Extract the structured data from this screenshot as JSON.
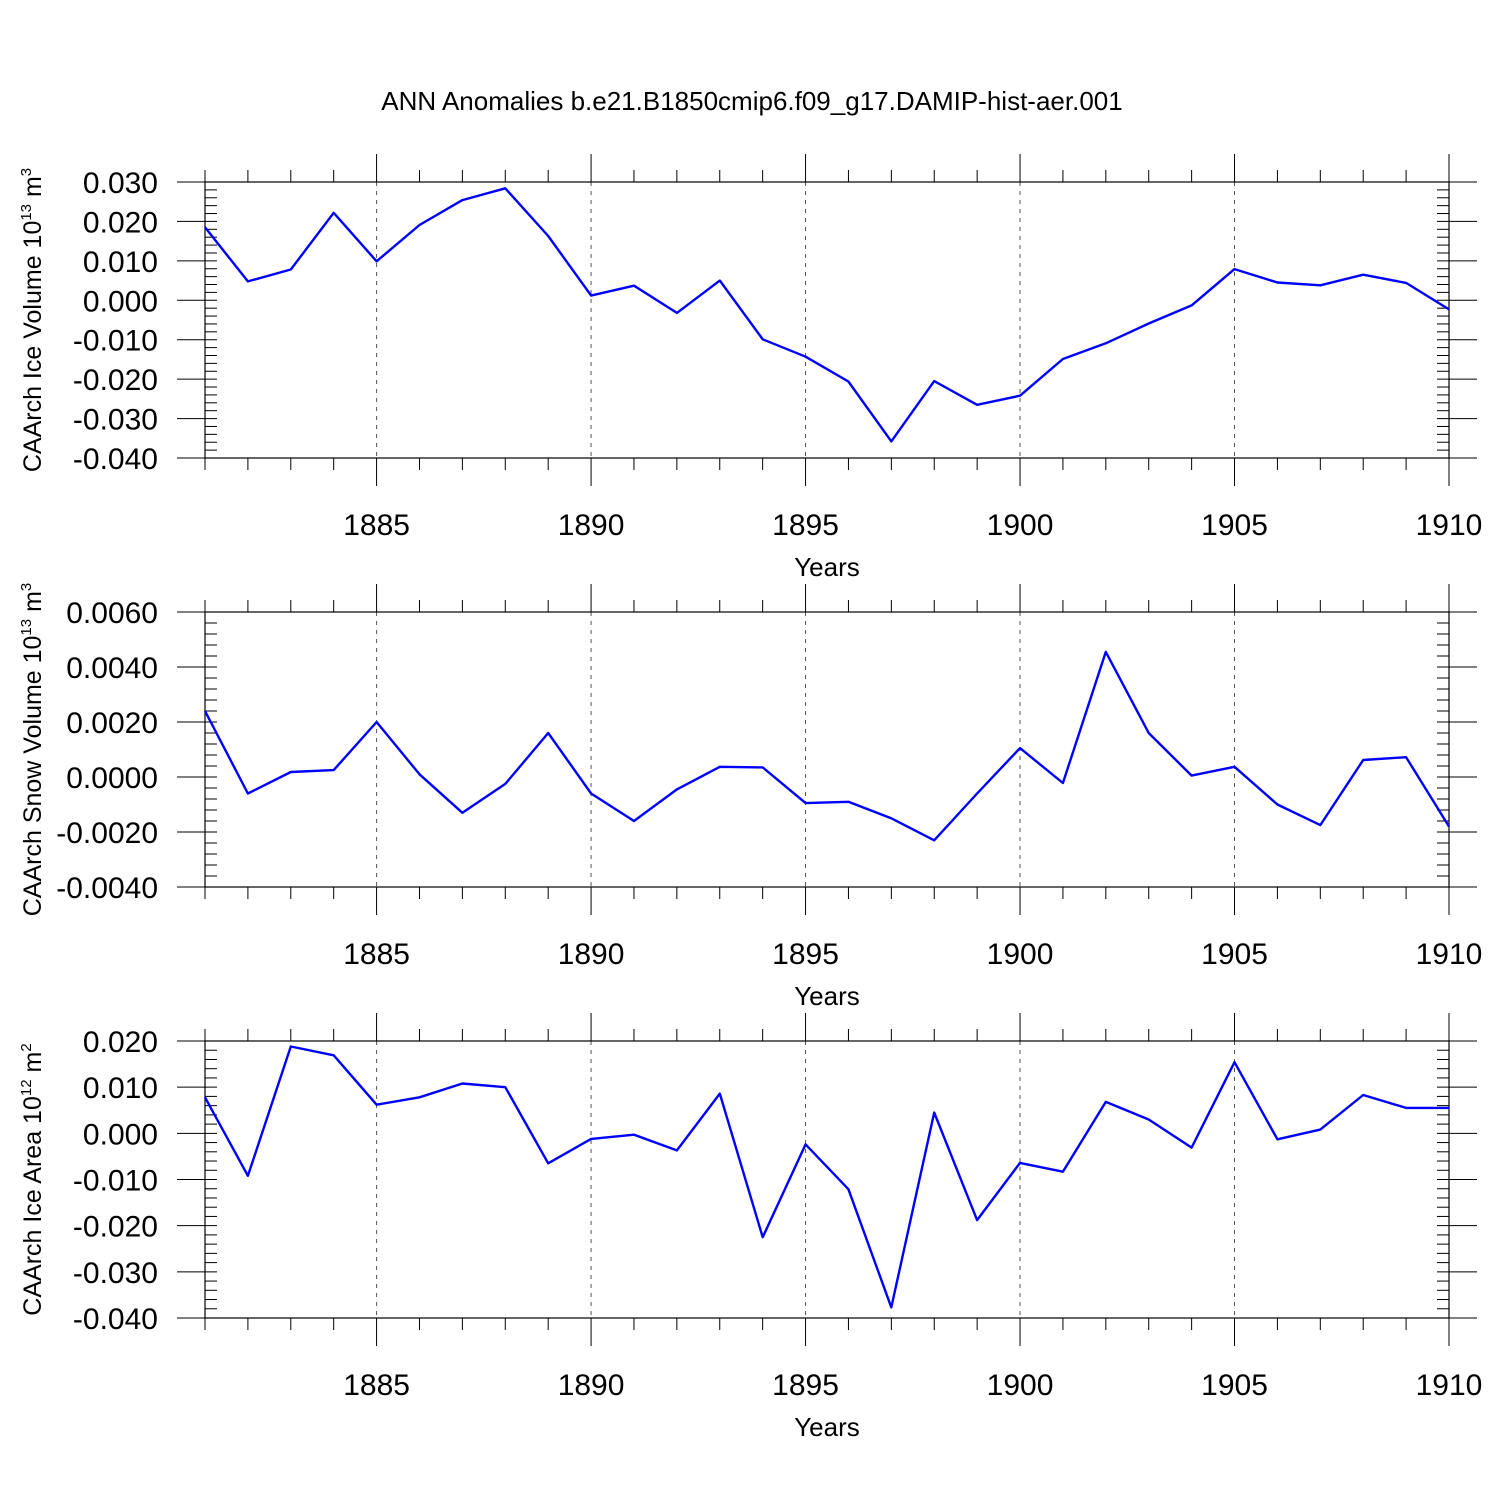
{
  "title": "ANN Anomalies b.e21.B1850cmip6.f09_g17.DAMIP-hist-aer.001",
  "colors": {
    "line": "#0000ff",
    "axis": "#000000",
    "grid": "#555555"
  },
  "chart_data": [
    {
      "type": "line",
      "ylabel": {
        "text": "CAArch Ice Volume 10",
        "sup": "13",
        "unit": " m",
        "unit_sup": "3"
      },
      "xlabel": "Years",
      "xlim": [
        1881,
        1910
      ],
      "ylim": [
        -0.04,
        0.03
      ],
      "yticks": [
        0.03,
        0.02,
        0.01,
        0.0,
        -0.01,
        -0.02,
        -0.03,
        -0.04
      ],
      "ytick_labels": [
        "0.030",
        "0.020",
        "0.010",
        "0.000",
        "-0.010",
        "-0.020",
        "-0.030",
        "-0.040"
      ],
      "xticks": [
        1885,
        1890,
        1895,
        1900,
        1905,
        1910
      ],
      "xtick_labels": [
        "1885",
        "1890",
        "1895",
        "1900",
        "1905",
        "1910"
      ],
      "grid": "vertical dashed at major x ticks",
      "x": [
        1881,
        1882,
        1883,
        1884,
        1885,
        1886,
        1887,
        1888,
        1889,
        1890,
        1891,
        1892,
        1893,
        1894,
        1895,
        1896,
        1897,
        1898,
        1899,
        1900,
        1901,
        1902,
        1903,
        1904,
        1905,
        1906,
        1907,
        1908,
        1909,
        1910
      ],
      "values": [
        0.0185,
        0.0048,
        0.0078,
        0.0222,
        0.0099,
        0.0191,
        0.0254,
        0.0284,
        0.0163,
        0.0012,
        0.0037,
        -0.0032,
        0.005,
        -0.0099,
        -0.0143,
        -0.0206,
        -0.0358,
        -0.0205,
        -0.0265,
        -0.0242,
        -0.0149,
        -0.0109,
        -0.0059,
        -0.0013,
        0.0079,
        0.0045,
        0.0038,
        0.0065,
        0.0044,
        -0.0023
      ]
    },
    {
      "type": "line",
      "ylabel": {
        "text": "CAArch Snow Volume 10",
        "sup": "13",
        "unit": " m",
        "unit_sup": "3"
      },
      "xlabel": "Years",
      "xlim": [
        1881,
        1910
      ],
      "ylim": [
        -0.004,
        0.006
      ],
      "yticks": [
        0.006,
        0.004,
        0.002,
        0.0,
        -0.002,
        -0.004
      ],
      "ytick_labels": [
        "0.0060",
        "0.0040",
        "0.0020",
        "0.0000",
        "-0.0020",
        "-0.0040"
      ],
      "xticks": [
        1885,
        1890,
        1895,
        1900,
        1905,
        1910
      ],
      "xtick_labels": [
        "1885",
        "1890",
        "1895",
        "1900",
        "1905",
        "1910"
      ],
      "grid": "vertical dashed at major x ticks",
      "x": [
        1881,
        1882,
        1883,
        1884,
        1885,
        1886,
        1887,
        1888,
        1889,
        1890,
        1891,
        1892,
        1893,
        1894,
        1895,
        1896,
        1897,
        1898,
        1899,
        1900,
        1901,
        1902,
        1903,
        1904,
        1905,
        1906,
        1907,
        1908,
        1909,
        1910
      ],
      "values": [
        0.0024,
        -0.0006,
        0.00018,
        0.00025,
        0.002,
        0.0001,
        -0.0013,
        -0.00025,
        0.0016,
        -0.0006,
        -0.0016,
        -0.00045,
        0.00037,
        0.00035,
        -0.00095,
        -0.0009,
        -0.0015,
        -0.0023,
        -0.0006,
        0.00105,
        -0.00022,
        0.00455,
        0.0016,
        5e-05,
        0.00037,
        -0.001,
        -0.00175,
        0.00062,
        0.00072,
        -0.0018
      ]
    },
    {
      "type": "line",
      "ylabel": {
        "text": "CAArch Ice Area 10",
        "sup": "12",
        "unit": " m",
        "unit_sup": "2"
      },
      "xlabel": "Years",
      "xlim": [
        1881,
        1910
      ],
      "ylim": [
        -0.04,
        0.02
      ],
      "yticks": [
        0.02,
        0.01,
        0.0,
        -0.01,
        -0.02,
        -0.03,
        -0.04
      ],
      "ytick_labels": [
        "0.020",
        "0.010",
        "0.000",
        "-0.010",
        "-0.020",
        "-0.030",
        "-0.040"
      ],
      "xticks": [
        1885,
        1890,
        1895,
        1900,
        1905,
        1910
      ],
      "xtick_labels": [
        "1885",
        "1890",
        "1895",
        "1900",
        "1905",
        "1910"
      ],
      "grid": "vertical dashed at major x ticks",
      "x": [
        1881,
        1882,
        1883,
        1884,
        1885,
        1886,
        1887,
        1888,
        1889,
        1890,
        1891,
        1892,
        1893,
        1894,
        1895,
        1896,
        1897,
        1898,
        1899,
        1900,
        1901,
        1902,
        1903,
        1904,
        1905,
        1906,
        1907,
        1908,
        1909,
        1910
      ],
      "values": [
        0.0078,
        -0.0092,
        0.0188,
        0.0169,
        0.0062,
        0.0078,
        0.0108,
        0.01,
        -0.0065,
        -0.0012,
        -0.0003,
        -0.0037,
        0.0086,
        -0.0225,
        -0.0024,
        -0.0121,
        -0.0377,
        0.0045,
        -0.0188,
        -0.0064,
        -0.0083,
        0.0068,
        0.003,
        -0.0031,
        0.0154,
        -0.0013,
        0.0008,
        0.0083,
        0.0055,
        0.0055
      ]
    }
  ]
}
